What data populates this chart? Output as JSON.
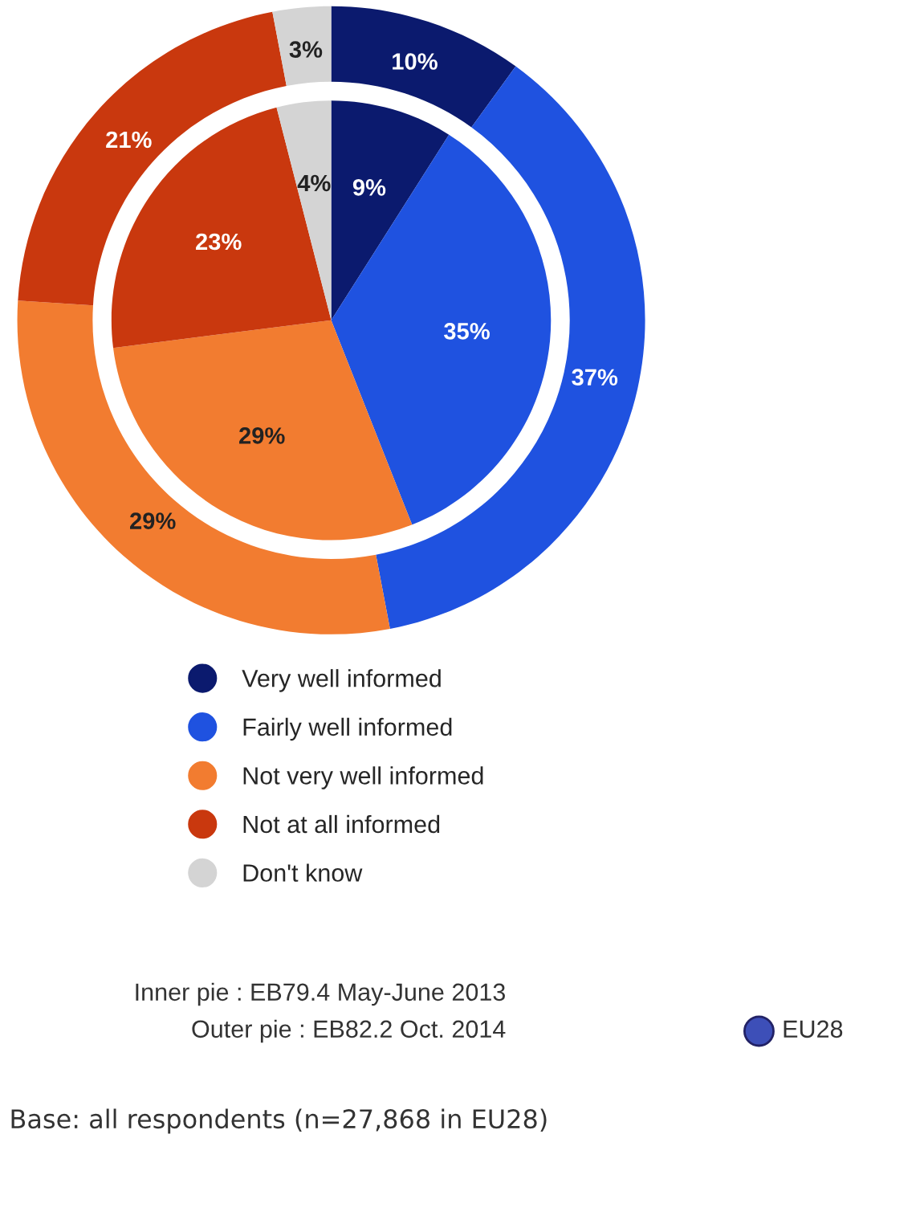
{
  "chart_data": {
    "type": "pie",
    "categories": [
      "Very well informed",
      "Fairly well informed",
      "Not very well informed",
      "Not at all informed",
      "Don't know"
    ],
    "colors": [
      "#0b1a6e",
      "#1f52e0",
      "#f27c30",
      "#c9380e",
      "#d4d4d4"
    ],
    "series": [
      {
        "values": [
          10,
          37,
          29,
          21,
          3
        ],
        "value_labels": [
          "10%",
          "37%",
          "29%",
          "21%",
          "3%"
        ]
      },
      {
        "values": [
          9,
          35,
          29,
          23,
          4
        ],
        "value_labels": [
          "9%",
          "35%",
          "29%",
          "23%",
          "4%"
        ]
      }
    ],
    "legend": "bottom",
    "annotations": [
      "Inner pie : EB79.4 May-June 2013",
      "Outer pie : EB82.2 Oct. 2014",
      "EU28",
      "Base: all respondents (n=27,868 in EU28)"
    ]
  }
}
